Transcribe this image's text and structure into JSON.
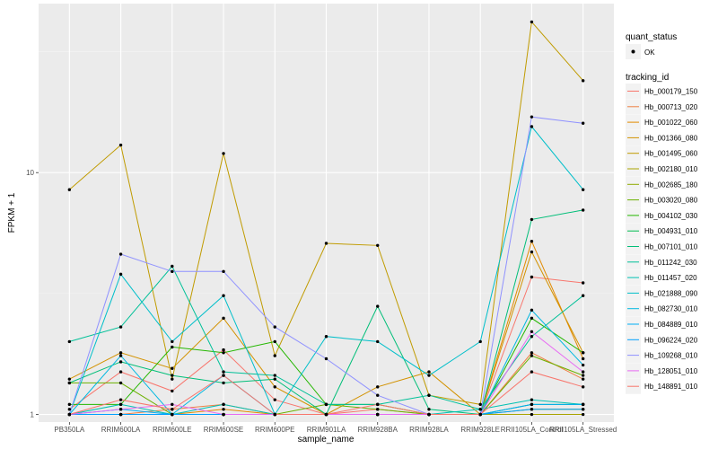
{
  "chart_data": {
    "type": "line",
    "xlabel": "sample_name",
    "ylabel": "FPKM + 1",
    "y_scale": "log",
    "y_ticks": [
      1,
      10
    ],
    "ylim": [
      0.93,
      50
    ],
    "grid": true,
    "legend_placement": "right",
    "categories": [
      "PB350LA",
      "RRIM600LA",
      "RRIM600LE",
      "RRIM600SE",
      "RRIM600PE",
      "RRIM901LA",
      "RRIM928BA",
      "RRIM928LA",
      "RRIM928LE",
      "RRII105LA_Control",
      "RRII105LA_Stressed"
    ],
    "quant_status": {
      "title": "quant_status",
      "entries": [
        "OK"
      ]
    },
    "tracking_title": "tracking_id",
    "series": [
      {
        "name": "Hb_000179_150",
        "color": "#F8766D",
        "values": [
          1.05,
          1.5,
          1.25,
          1.85,
          1.15,
          1.0,
          1.05,
          1.0,
          1.0,
          3.7,
          3.5
        ]
      },
      {
        "name": "Hb_000713_020",
        "color": "#EE8044",
        "values": [
          1.0,
          1.0,
          1.05,
          1.1,
          1.0,
          1.0,
          1.0,
          1.0,
          1.0,
          1.8,
          1.4
        ]
      },
      {
        "name": "Hb_001022_060",
        "color": "#E28A00",
        "values": [
          1.0,
          1.0,
          1.0,
          1.05,
          1.0,
          1.0,
          1.0,
          1.0,
          1.0,
          5.2,
          1.7
        ]
      },
      {
        "name": "Hb_001366_080",
        "color": "#D39200",
        "values": [
          1.4,
          1.8,
          1.55,
          2.5,
          1.3,
          1.0,
          1.3,
          1.5,
          1.0,
          4.7,
          1.8
        ]
      },
      {
        "name": "Hb_001495_060",
        "color": "#C09B00",
        "values": [
          8.5,
          13.0,
          1.4,
          12.0,
          1.75,
          5.1,
          5.0,
          1.2,
          1.1,
          42.0,
          24.0
        ]
      },
      {
        "name": "Hb_002180_010",
        "color": "#A9A400",
        "values": [
          1.0,
          1.0,
          1.0,
          1.0,
          1.0,
          1.0,
          1.0,
          1.0,
          1.0,
          1.0,
          1.0
        ]
      },
      {
        "name": "Hb_002685_180",
        "color": "#8FAA00",
        "values": [
          1.0,
          1.0,
          1.0,
          1.0,
          1.0,
          1.0,
          1.0,
          1.0,
          1.0,
          1.05,
          1.05
        ]
      },
      {
        "name": "Hb_003020_080",
        "color": "#6BB100",
        "values": [
          1.35,
          1.35,
          1.0,
          1.0,
          1.0,
          1.1,
          1.05,
          1.0,
          1.0,
          1.75,
          1.45
        ]
      },
      {
        "name": "Hb_004102_030",
        "color": "#24B700",
        "values": [
          1.1,
          1.1,
          1.9,
          1.8,
          2.0,
          1.1,
          1.1,
          1.0,
          1.0,
          2.5,
          1.8
        ]
      },
      {
        "name": "Hb_004931_010",
        "color": "#00BB4F",
        "values": [
          1.0,
          1.0,
          1.0,
          1.0,
          1.0,
          1.0,
          1.0,
          1.0,
          1.0,
          1.1,
          1.1
        ]
      },
      {
        "name": "Hb_007101_010",
        "color": "#00BE78",
        "values": [
          1.35,
          1.65,
          1.45,
          1.35,
          1.4,
          1.0,
          2.8,
          1.05,
          1.0,
          6.4,
          7.0
        ]
      },
      {
        "name": "Hb_011242_030",
        "color": "#00C098",
        "values": [
          2.0,
          2.3,
          4.1,
          1.5,
          1.45,
          1.1,
          1.1,
          1.2,
          1.05,
          2.1,
          3.1
        ]
      },
      {
        "name": "Hb_011457_020",
        "color": "#00C1B2",
        "values": [
          1.0,
          1.1,
          1.0,
          1.1,
          1.0,
          1.0,
          1.0,
          1.0,
          1.05,
          1.15,
          1.1
        ]
      },
      {
        "name": "Hb_021888_090",
        "color": "#00BFCA",
        "values": [
          1.0,
          3.8,
          2.0,
          3.1,
          1.0,
          2.1,
          2.0,
          1.45,
          2.0,
          15.5,
          8.5
        ]
      },
      {
        "name": "Hb_082730_010",
        "color": "#00B8E1",
        "values": [
          1.0,
          1.75,
          1.0,
          1.45,
          1.0,
          1.0,
          1.0,
          1.0,
          1.0,
          2.7,
          1.6
        ]
      },
      {
        "name": "Hb_084889_010",
        "color": "#00ADF4",
        "values": [
          1.0,
          1.05,
          1.0,
          1.0,
          1.0,
          1.0,
          1.0,
          1.0,
          1.0,
          1.1,
          1.1
        ]
      },
      {
        "name": "Hb_096224_020",
        "color": "#00A0FF",
        "values": [
          1.0,
          1.0,
          1.0,
          1.0,
          1.0,
          1.0,
          1.0,
          1.0,
          1.0,
          1.05,
          1.05
        ]
      },
      {
        "name": "Hb_109268_010",
        "color": "#8F91FF",
        "values": [
          1.0,
          4.6,
          3.9,
          3.9,
          2.3,
          1.7,
          1.2,
          1.0,
          1.0,
          17.0,
          16.0
        ]
      },
      {
        "name": "Hb_128051_010",
        "color": "#E76BF3",
        "values": [
          1.0,
          1.05,
          1.1,
          1.0,
          1.0,
          1.0,
          1.0,
          1.0,
          1.0,
          2.2,
          1.5
        ]
      },
      {
        "name": "Hb_148891_010",
        "color": "#F8766D",
        "values": [
          1.0,
          1.15,
          1.05,
          1.45,
          1.0,
          1.0,
          1.1,
          1.0,
          1.0,
          1.5,
          1.3
        ]
      }
    ]
  }
}
